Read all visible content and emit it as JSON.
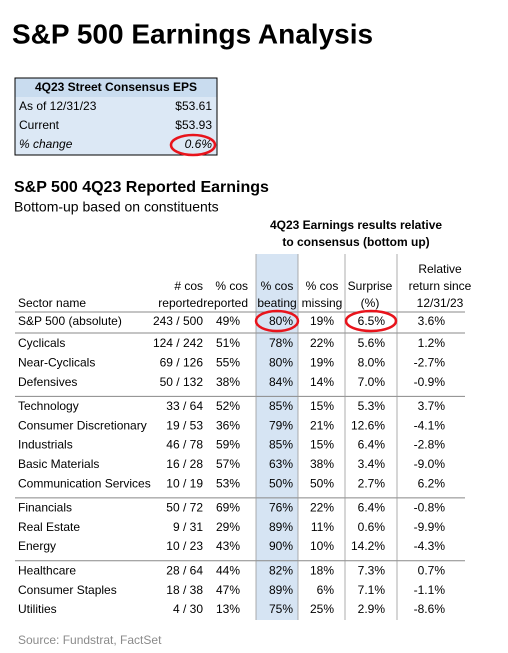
{
  "title": "S&P 500 Earnings Analysis",
  "eps_box": {
    "header": "4Q23 Street Consensus EPS",
    "rows": [
      [
        "As of 12/31/23",
        "$53.61"
      ],
      [
        "Current",
        "$53.93"
      ],
      [
        "% change",
        "0.6%"
      ]
    ]
  },
  "table": {
    "section_title": "S&P 500 4Q23 Reported Earnings",
    "subtitle": "Bottom-up based on constituents",
    "group_header": [
      "4Q23 Earnings results relative",
      "to consensus (bottom up)"
    ],
    "columns": [
      [
        "Sector name"
      ],
      [
        "# cos",
        "reported"
      ],
      [
        "% cos",
        "reported"
      ],
      [
        "% cos",
        "beating"
      ],
      [
        "% cos",
        "missing"
      ],
      [
        "Surprise",
        "(%)"
      ],
      [
        "Relative",
        "return since",
        "12/31/23"
      ]
    ],
    "total_row": [
      "S&P 500 (absolute)",
      "243 / 500",
      "49%",
      "80%",
      "19%",
      "6.5%",
      "3.6%"
    ],
    "groups": [
      [
        [
          "Cyclicals",
          "124 / 242",
          "51%",
          "78%",
          "22%",
          "5.6%",
          "1.2%"
        ],
        [
          "Near-Cyclicals",
          "69 / 126",
          "55%",
          "80%",
          "19%",
          "8.0%",
          "-2.7%"
        ],
        [
          "Defensives",
          "50 / 132",
          "38%",
          "84%",
          "14%",
          "7.0%",
          "-0.9%"
        ]
      ],
      [
        [
          "Technology",
          "33 / 64",
          "52%",
          "85%",
          "15%",
          "5.3%",
          "3.7%"
        ],
        [
          "Consumer Discretionary",
          "19 / 53",
          "36%",
          "79%",
          "21%",
          "12.6%",
          "-4.1%"
        ],
        [
          "Industrials",
          "46 / 78",
          "59%",
          "85%",
          "15%",
          "6.4%",
          "-2.8%"
        ],
        [
          "Basic Materials",
          "16 / 28",
          "57%",
          "63%",
          "38%",
          "3.4%",
          "-9.0%"
        ],
        [
          "Communication Services",
          "10 / 19",
          "53%",
          "50%",
          "50%",
          "2.7%",
          "6.2%"
        ]
      ],
      [
        [
          "Financials",
          "50 / 72",
          "69%",
          "76%",
          "22%",
          "6.4%",
          "-0.8%"
        ],
        [
          "Real Estate",
          "9 / 31",
          "29%",
          "89%",
          "11%",
          "0.6%",
          "-9.9%"
        ],
        [
          "Energy",
          "10 / 23",
          "43%",
          "90%",
          "10%",
          "14.2%",
          "-4.3%"
        ]
      ],
      [
        [
          "Healthcare",
          "28 / 64",
          "44%",
          "82%",
          "18%",
          "7.3%",
          "0.7%"
        ],
        [
          "Consumer Staples",
          "18 / 38",
          "47%",
          "89%",
          "6%",
          "7.1%",
          "-1.1%"
        ],
        [
          "Utilities",
          "4 / 30",
          "13%",
          "75%",
          "25%",
          "2.9%",
          "-8.6%"
        ]
      ]
    ]
  },
  "source": "Source: Fundstrat, FactSet"
}
